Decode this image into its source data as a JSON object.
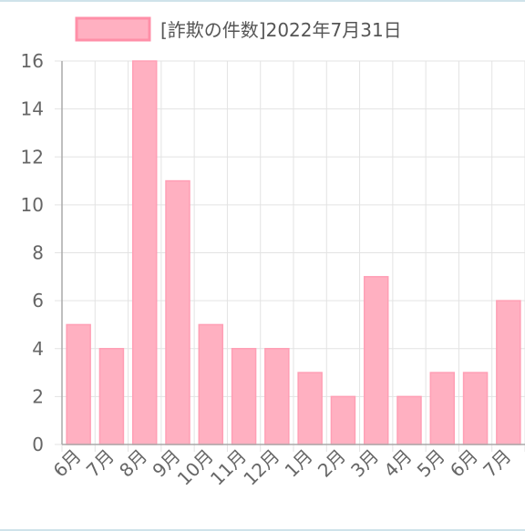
{
  "chart_data": {
    "type": "bar",
    "categories": [
      "6月",
      "7月",
      "8月",
      "9月",
      "10月",
      "11月",
      "12月",
      "1月",
      "2月",
      "3月",
      "4月",
      "5月",
      "6月",
      "7月"
    ],
    "series": [
      {
        "name": "[詐欺の件数]2022年7月31日",
        "values": [
          5,
          4,
          16,
          11,
          5,
          4,
          4,
          3,
          2,
          7,
          2,
          3,
          3,
          6
        ]
      }
    ],
    "ylim": [
      0,
      16
    ],
    "yticks": [
      "0",
      "2",
      "4",
      "6",
      "8",
      "10",
      "12",
      "14",
      "16"
    ],
    "grid": true,
    "legend_position": "top",
    "colors": {
      "bar_fill": "#ffb0c1",
      "bar_stroke": "#ff9fb5",
      "grid": "#e3e3e3",
      "axis": "#aaaaaa"
    }
  }
}
